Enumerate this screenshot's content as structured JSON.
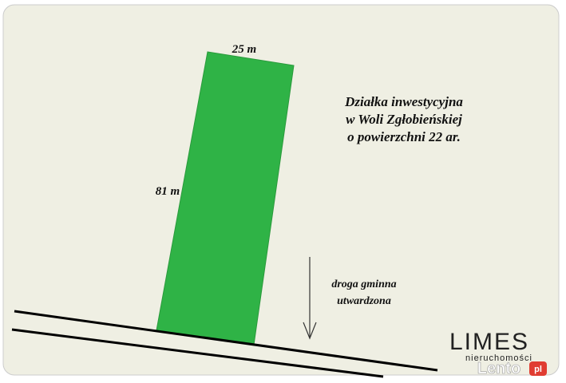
{
  "plot": {
    "top_side": "25 m",
    "left_side": "81 m"
  },
  "description": {
    "lines": [
      "Działka inwestycyjna",
      "w Woli Zgłobieńskiej",
      "o powierzchni 22 ar."
    ]
  },
  "road": {
    "lines": [
      "droga gminna",
      "utwardzona"
    ]
  },
  "logo": {
    "name": "LIMES",
    "subtitle": "nieruchomości"
  },
  "watermark": {
    "name": "Lento",
    "badge": "pl"
  }
}
